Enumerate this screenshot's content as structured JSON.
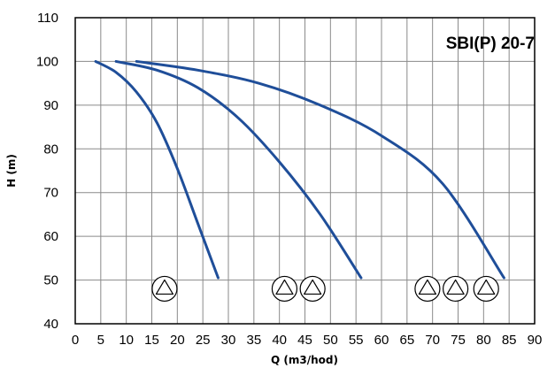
{
  "chart_data": {
    "type": "line",
    "title": "SBI(P) 20-7",
    "xlabel": "Q (m3/hod)",
    "ylabel": "H (m)",
    "xlim": [
      0,
      90
    ],
    "ylim": [
      40,
      110
    ],
    "x_ticks": [
      "0",
      "5",
      "10",
      "15",
      "20",
      "25",
      "30",
      "35",
      "40",
      "45",
      "50",
      "55",
      "60",
      "65",
      "70",
      "75",
      "80",
      "85",
      "90"
    ],
    "y_ticks": [
      "40",
      "50",
      "60",
      "70",
      "80",
      "90",
      "100",
      "110"
    ],
    "grid": true,
    "colors": {
      "curve": "#1f4e99",
      "grid": "#8a8a8a",
      "frame": "#000000"
    },
    "series": [
      {
        "x": [
          4,
          8,
          12,
          16,
          20,
          24,
          28
        ],
        "y": [
          100,
          97.5,
          93,
          86,
          75.5,
          63,
          50.5
        ]
      },
      {
        "x": [
          8,
          16,
          24,
          32,
          40,
          48,
          56
        ],
        "y": [
          100,
          98,
          94,
          87,
          77,
          65,
          50.5
        ]
      },
      {
        "x": [
          12,
          24,
          36,
          48,
          60,
          72,
          84
        ],
        "y": [
          100,
          98,
          95,
          90,
          83,
          72,
          50.5
        ]
      }
    ],
    "pump_symbols": {
      "icon": "pump-triangle-icon",
      "x": [
        17.5,
        41,
        46.5,
        69,
        74.5,
        80.5
      ],
      "y": [
        48,
        48,
        48,
        48,
        48,
        48
      ]
    }
  }
}
